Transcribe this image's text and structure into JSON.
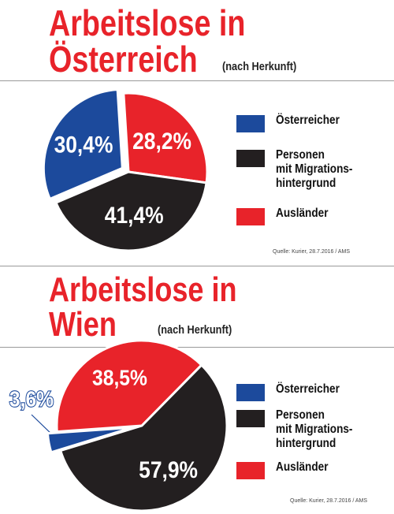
{
  "colors": {
    "oesterreicher": "#1c4a9c",
    "migration": "#231f20",
    "auslaender": "#e8232a",
    "title": "#e8232a"
  },
  "legend": [
    {
      "label": "Österreicher",
      "color": "#1c4a9c"
    },
    {
      "label": "Personen\nmit Migrations-\nhintergrund",
      "color": "#231f20"
    },
    {
      "label": "Ausländer",
      "color": "#e8232a"
    }
  ],
  "chart_data": [
    {
      "type": "pie",
      "title": "Arbeitslose in Österreich",
      "title_line1": "Arbeitslose in",
      "title_line2": "Österreich",
      "subtitle": "(nach Herkunft)",
      "source": "Quelle: Kurier, 28.7.2016 / AMS",
      "slices": [
        {
          "label": "Österreicher",
          "value": 30.4,
          "display": "30,4%",
          "color": "#1c4a9c",
          "exploded": true
        },
        {
          "label": "Ausländer",
          "value": 28.2,
          "display": "28,2%",
          "color": "#e8232a",
          "exploded": false
        },
        {
          "label": "Personen mit Migrationshintergrund",
          "value": 41.4,
          "display": "41,4%",
          "color": "#231f20",
          "exploded": false
        }
      ]
    },
    {
      "type": "pie",
      "title": "Arbeitslose in Wien",
      "title_line1": "Arbeitslose in",
      "title_line2": "Wien",
      "subtitle": "(nach Herkunft)",
      "source": "Quelle: Kurier, 28.7.2016 / AMS",
      "slices": [
        {
          "label": "Österreicher",
          "value": 3.6,
          "display": "3,6%",
          "color": "#1c4a9c",
          "exploded": true
        },
        {
          "label": "Ausländer",
          "value": 38.5,
          "display": "38,5%",
          "color": "#e8232a",
          "exploded": false
        },
        {
          "label": "Personen mit Migrationshintergrund",
          "value": 57.9,
          "display": "57,9%",
          "color": "#231f20",
          "exploded": false
        }
      ]
    }
  ]
}
